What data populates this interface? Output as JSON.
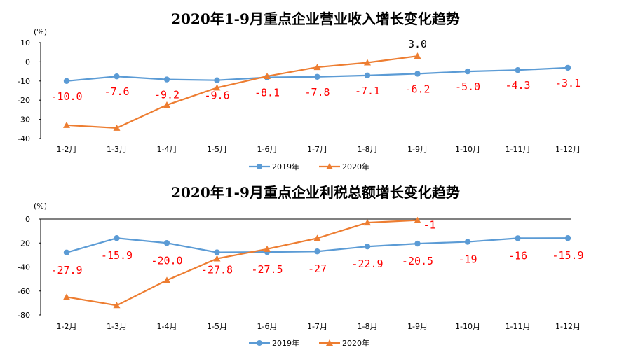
{
  "colors": {
    "s2019": "#5B9BD5",
    "s2020": "#ED7D31",
    "labels2019": "#FF0000",
    "label2020": "#000000"
  },
  "chart_data": [
    {
      "type": "line",
      "title": "2020年1-9月重点企业营业收入增长变化趋势",
      "unit": "(%)",
      "categories": [
        "1-2月",
        "1-3月",
        "1-4月",
        "1-5月",
        "1-6月",
        "1-7月",
        "1-8月",
        "1-9月",
        "1-10月",
        "1-11月",
        "1-12月"
      ],
      "ylim": [
        -40,
        10
      ],
      "yticks": [
        10,
        0,
        -10,
        -20,
        -30,
        -40
      ],
      "grid": false,
      "legend_position": "bottom",
      "series": [
        {
          "name": "2019年",
          "values": [
            -10.0,
            -7.6,
            -9.2,
            -9.6,
            -8.1,
            -7.8,
            -7.1,
            -6.2,
            -5.0,
            -4.3,
            -3.1
          ],
          "labels": [
            "-10.0",
            "-7.6",
            "-9.2",
            "-9.6",
            "-8.1",
            "-7.8",
            "-7.1",
            "-6.2",
            "-5.0",
            "-4.3",
            "-3.1"
          ]
        },
        {
          "name": "2020年",
          "values": [
            -33,
            -34.5,
            -22.5,
            -13.5,
            -7.5,
            -2.8,
            -0.4,
            3.0,
            null,
            null,
            null
          ],
          "labels": [
            null,
            null,
            null,
            null,
            null,
            null,
            null,
            "3.0",
            null,
            null,
            null
          ]
        }
      ]
    },
    {
      "type": "line",
      "title": "2020年1-9月重点企业利税总额增长变化趋势",
      "unit": "(%)",
      "categories": [
        "1-2月",
        "1-3月",
        "1-4月",
        "1-5月",
        "1-6月",
        "1-7月",
        "1-8月",
        "1-9月",
        "1-10月",
        "1-11月",
        "1-12月"
      ],
      "ylim": [
        -80,
        0
      ],
      "yticks": [
        0,
        -20,
        -40,
        -60,
        -80
      ],
      "grid": false,
      "legend_position": "bottom",
      "series": [
        {
          "name": "2019年",
          "values": [
            -27.9,
            -15.9,
            -20.0,
            -27.8,
            -27.5,
            -27,
            -22.9,
            -20.5,
            -19,
            -16,
            -15.9
          ],
          "labels": [
            "-27.9",
            "-15.9",
            "-20.0",
            "-27.8",
            "-27.5",
            "-27",
            "-22.9",
            "-20.5",
            "-19",
            "-16",
            "-15.9"
          ]
        },
        {
          "name": "2020年",
          "values": [
            -65,
            -72,
            -51,
            -33,
            -25,
            -16,
            -3,
            -1,
            null,
            null,
            null
          ],
          "labels": [
            null,
            null,
            null,
            null,
            null,
            null,
            null,
            "-1",
            null,
            null,
            null
          ]
        }
      ]
    }
  ]
}
